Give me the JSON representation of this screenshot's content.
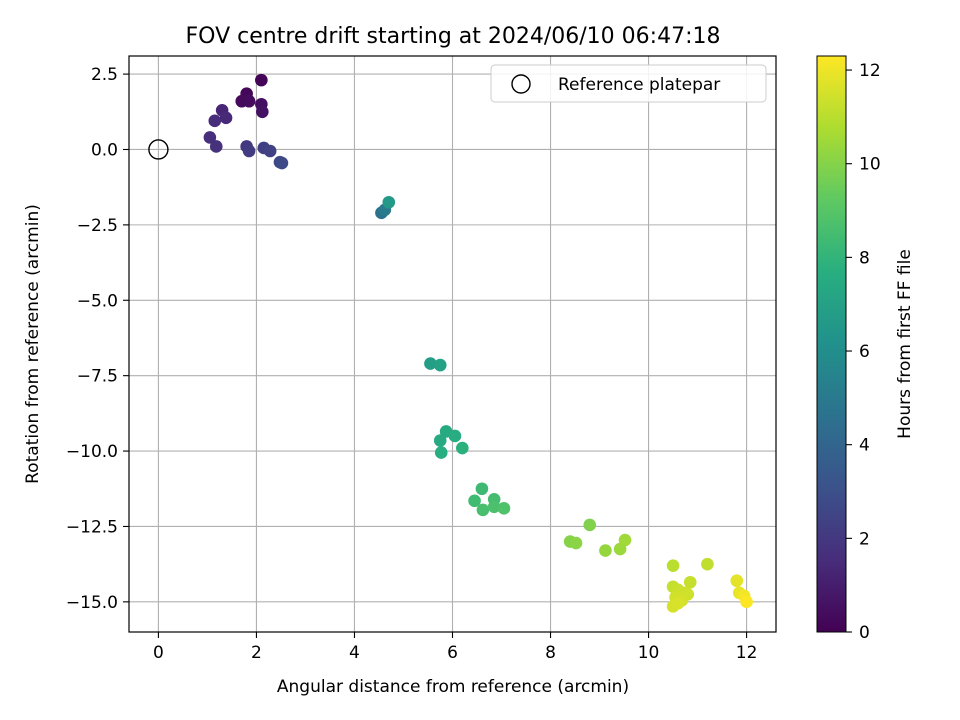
{
  "chart_data": {
    "type": "scatter",
    "title": "FOV centre drift starting at 2024/06/10 06:47:18",
    "xlabel": "Angular distance from reference (arcmin)",
    "ylabel": "Rotation from reference (arcmin)",
    "xlim": [
      -0.6,
      12.6
    ],
    "ylim": [
      -16.0,
      3.1
    ],
    "xticks": [
      0,
      2,
      4,
      6,
      8,
      10,
      12
    ],
    "yticks": [
      2.5,
      0.0,
      -2.5,
      -5.0,
      -7.5,
      -10.0,
      -12.5,
      -15.0
    ],
    "ytick_labels": [
      "2.5",
      "0.0",
      "−2.5",
      "−5.0",
      "−7.5",
      "−10.0",
      "−12.5",
      "−15.0"
    ],
    "grid": true,
    "legend": {
      "position": "top-right",
      "label": "Reference platepar"
    },
    "reference": {
      "x": 0.0,
      "y": 0.0
    },
    "colorbar": {
      "label": "Hours from first FF file",
      "range": [
        0,
        12.3
      ],
      "ticks": [
        0,
        2,
        4,
        6,
        8,
        10,
        12
      ],
      "colormap": "viridis"
    },
    "points": [
      {
        "x": 2.1,
        "y": 2.3,
        "t": 0.1
      },
      {
        "x": 1.8,
        "y": 1.85,
        "t": 0.2
      },
      {
        "x": 1.7,
        "y": 1.6,
        "t": 0.3
      },
      {
        "x": 1.85,
        "y": 1.6,
        "t": 0.4
      },
      {
        "x": 2.1,
        "y": 1.5,
        "t": 0.5
      },
      {
        "x": 2.12,
        "y": 1.25,
        "t": 0.6
      },
      {
        "x": 1.3,
        "y": 1.3,
        "t": 1.3
      },
      {
        "x": 1.38,
        "y": 1.05,
        "t": 1.4
      },
      {
        "x": 1.15,
        "y": 0.95,
        "t": 1.5
      },
      {
        "x": 1.05,
        "y": 0.4,
        "t": 1.6
      },
      {
        "x": 1.18,
        "y": 0.1,
        "t": 1.7
      },
      {
        "x": 1.8,
        "y": 0.1,
        "t": 2.0
      },
      {
        "x": 1.85,
        "y": -0.05,
        "t": 2.1
      },
      {
        "x": 2.15,
        "y": 0.05,
        "t": 2.3
      },
      {
        "x": 2.28,
        "y": -0.05,
        "t": 2.4
      },
      {
        "x": 2.48,
        "y": -0.42,
        "t": 2.6
      },
      {
        "x": 2.52,
        "y": -0.45,
        "t": 2.7
      },
      {
        "x": 4.55,
        "y": -2.1,
        "t": 4.6
      },
      {
        "x": 4.62,
        "y": -2.0,
        "t": 5.0
      },
      {
        "x": 4.7,
        "y": -1.75,
        "t": 6.6
      },
      {
        "x": 5.55,
        "y": -7.1,
        "t": 6.9
      },
      {
        "x": 5.75,
        "y": -7.15,
        "t": 7.0
      },
      {
        "x": 5.87,
        "y": -9.35,
        "t": 7.4
      },
      {
        "x": 5.75,
        "y": -9.65,
        "t": 7.5
      },
      {
        "x": 6.05,
        "y": -9.5,
        "t": 7.6
      },
      {
        "x": 5.77,
        "y": -10.05,
        "t": 7.7
      },
      {
        "x": 6.2,
        "y": -9.9,
        "t": 7.8
      },
      {
        "x": 6.6,
        "y": -11.25,
        "t": 8.3
      },
      {
        "x": 6.45,
        "y": -11.65,
        "t": 8.4
      },
      {
        "x": 6.85,
        "y": -11.6,
        "t": 8.5
      },
      {
        "x": 6.62,
        "y": -11.95,
        "t": 8.6
      },
      {
        "x": 6.85,
        "y": -11.85,
        "t": 8.7
      },
      {
        "x": 7.05,
        "y": -11.9,
        "t": 8.8
      },
      {
        "x": 8.8,
        "y": -12.45,
        "t": 9.9
      },
      {
        "x": 8.4,
        "y": -13.0,
        "t": 10.0
      },
      {
        "x": 8.52,
        "y": -13.05,
        "t": 10.1
      },
      {
        "x": 9.12,
        "y": -13.3,
        "t": 10.3
      },
      {
        "x": 9.42,
        "y": -13.25,
        "t": 10.4
      },
      {
        "x": 9.52,
        "y": -12.95,
        "t": 10.5
      },
      {
        "x": 10.5,
        "y": -13.8,
        "t": 11.0
      },
      {
        "x": 11.2,
        "y": -13.75,
        "t": 11.1
      },
      {
        "x": 10.5,
        "y": -14.5,
        "t": 11.2
      },
      {
        "x": 10.85,
        "y": -14.35,
        "t": 11.25
      },
      {
        "x": 10.6,
        "y": -14.6,
        "t": 11.3
      },
      {
        "x": 10.72,
        "y": -14.7,
        "t": 11.35
      },
      {
        "x": 10.8,
        "y": -14.75,
        "t": 11.4
      },
      {
        "x": 10.55,
        "y": -14.85,
        "t": 11.45
      },
      {
        "x": 10.68,
        "y": -14.95,
        "t": 11.5
      },
      {
        "x": 10.5,
        "y": -15.15,
        "t": 11.55
      },
      {
        "x": 10.6,
        "y": -15.05,
        "t": 11.6
      },
      {
        "x": 11.8,
        "y": -14.3,
        "t": 11.8
      },
      {
        "x": 11.85,
        "y": -14.7,
        "t": 11.9
      },
      {
        "x": 11.95,
        "y": -14.8,
        "t": 12.1
      },
      {
        "x": 12.0,
        "y": -15.0,
        "t": 12.3
      }
    ]
  }
}
